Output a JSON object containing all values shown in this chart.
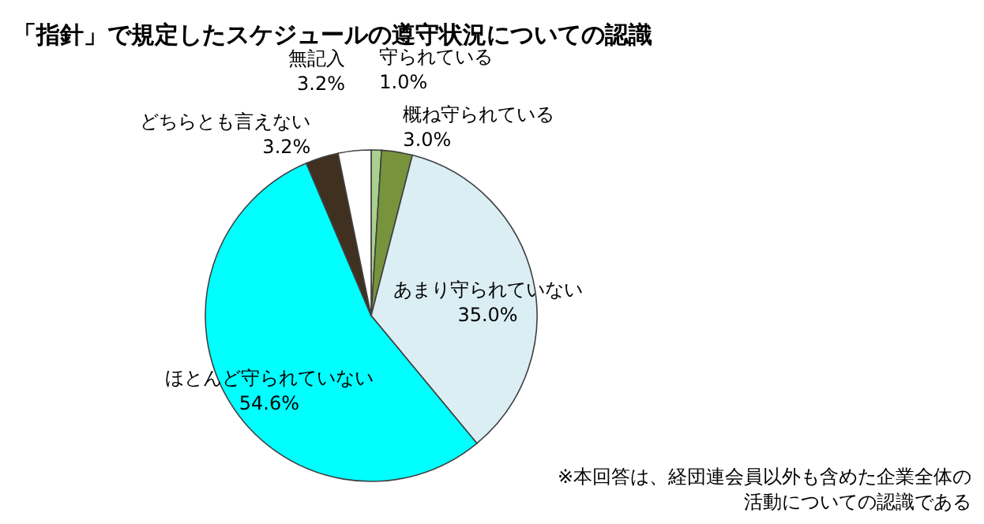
{
  "chart_data": {
    "type": "pie",
    "title": "「指針」で規定したスケジュールの遵守状況についての認識",
    "categories": [
      "守られている",
      "概ね守られている",
      "あまり守られていない",
      "ほとんど守られていない",
      "どちらとも言えない",
      "無記入"
    ],
    "values": [
      1.0,
      3.0,
      35.0,
      54.6,
      3.2,
      3.2
    ],
    "value_labels": [
      "1.0%",
      "3.0%",
      "35.0%",
      "54.6%",
      "3.2%",
      "3.2%"
    ],
    "colors": [
      "#a9d18e",
      "#77933c",
      "#dbeef4",
      "#00ffff",
      "#403020",
      "#ffffff"
    ],
    "annotations": [
      "※本回答は、経団連会員以外も含めた企業全体の",
      "活動についての認識である"
    ],
    "legend": false
  }
}
